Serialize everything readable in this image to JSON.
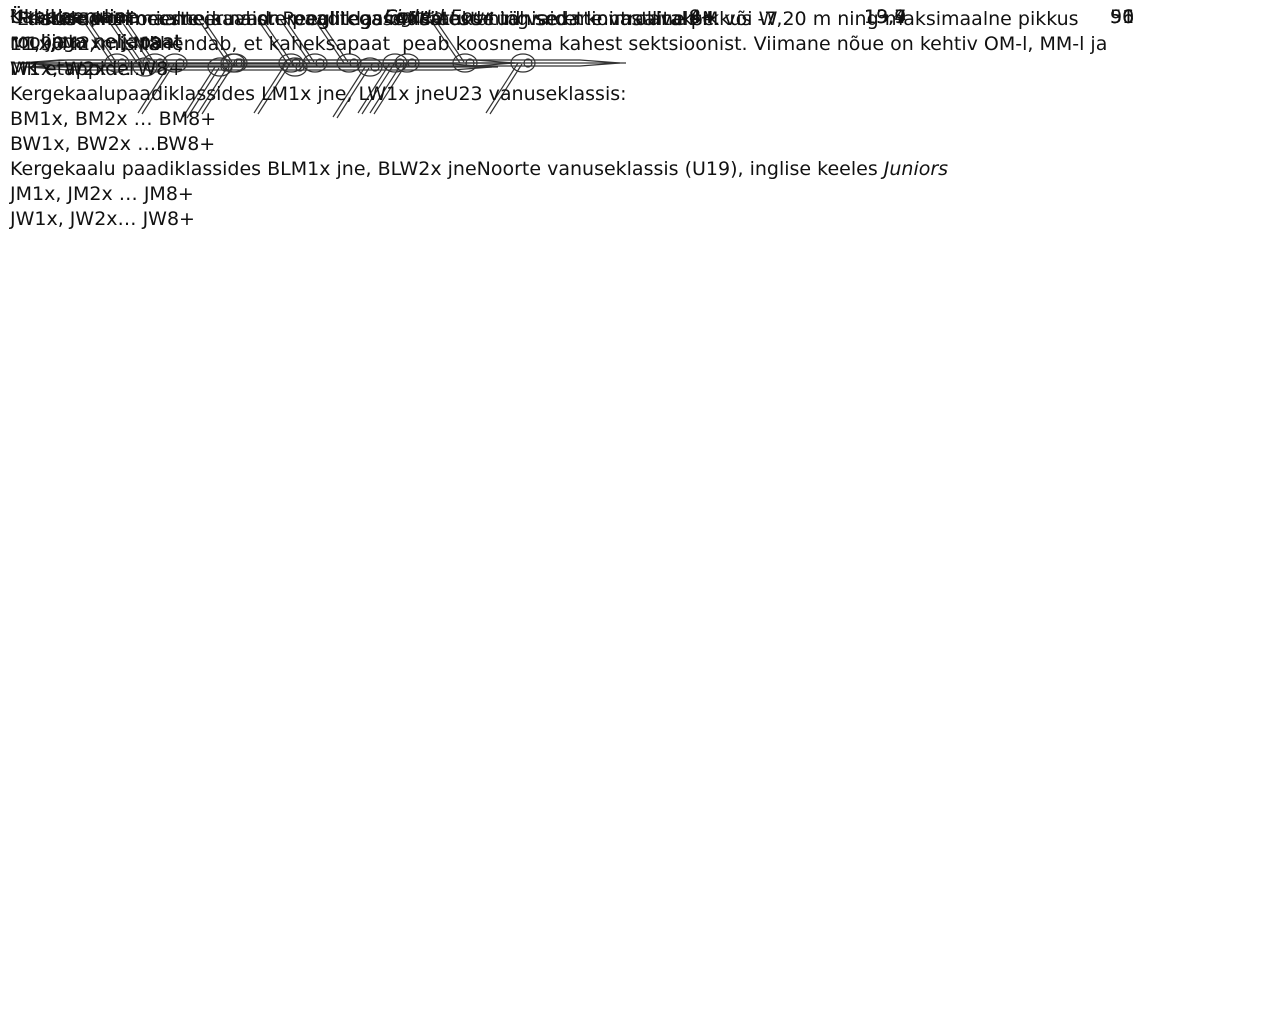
{
  "boats": [
    {
      "name": [
        "Üksikaeruline",
        "roolijata neljapaat"
      ],
      "english": "Four",
      "code": "4-",
      "length": "13,4",
      "weight": "50"
    },
    {
      "name": [
        "Üksikaeruline",
        "rooljaga neljapaat"
      ],
      "english": "Coxed Four",
      "code": "4+",
      "length": "13,7",
      "weight": "51"
    },
    {
      "name": [
        "Kaheksapaat"
      ],
      "english": "Eight",
      "code": "8+",
      "length": "19,9",
      "weight": "96"
    }
  ],
  "footnotes": [
    {
      "mark": "1",
      "lines": [
        [
          {
            "text": "Eristamaks meeste ja naiste paadiklasse lisatakse tähise ette vastavalt M või W"
          }
        ],
        [
          {
            "text": "M1x, M2x … M8+;"
          }
        ],
        [
          {
            "text": "W1x, W2x … W8+"
          }
        ],
        [
          {
            "text": "Kergekaalupaadiklassides LM1x jne, LW1x jneU23 vanuseklassis:"
          }
        ],
        [
          {
            "text": "BM1x, BM2x … BM8+"
          }
        ],
        [
          {
            "text": "BW1x, BW2x …BW8+"
          }
        ],
        [
          {
            "text": "Kergekaalu paadiklassides BLM1x jne, BLW2x jneNoorte vanuseklassis (U19), inglise keeles "
          },
          {
            "text": "Juniors",
            "italic": true
          }
        ],
        [
          {
            "text": "JM1x, JM2x … JM8+"
          }
        ],
        [
          {
            "text": "JW1x, JW2x… JW8+"
          }
        ]
      ]
    },
    {
      "mark": "2",
      "lines": [
        [
          {
            "text": "Pikkused on orienteeruvad. Reeglitega on sätestatud vaid minimaalne pikkus -7,20 m ning maksimaalne pikkus"
          }
        ],
        [
          {
            "text": "11,90 m, mis tähendab, et kaheksapaat  peab koosnema kahest sektsioonist. Viimane nõue on kehtiv OM-l, MM-l ja"
          }
        ],
        [
          {
            "text": "MK etappidel."
          }
        ]
      ]
    },
    {
      "mark": "3",
      "lines": [
        [
          {
            "text": "Paatide minimaalne kaal on reeglitega määratud ning seda kontrollitakse."
          }
        ]
      ]
    }
  ]
}
